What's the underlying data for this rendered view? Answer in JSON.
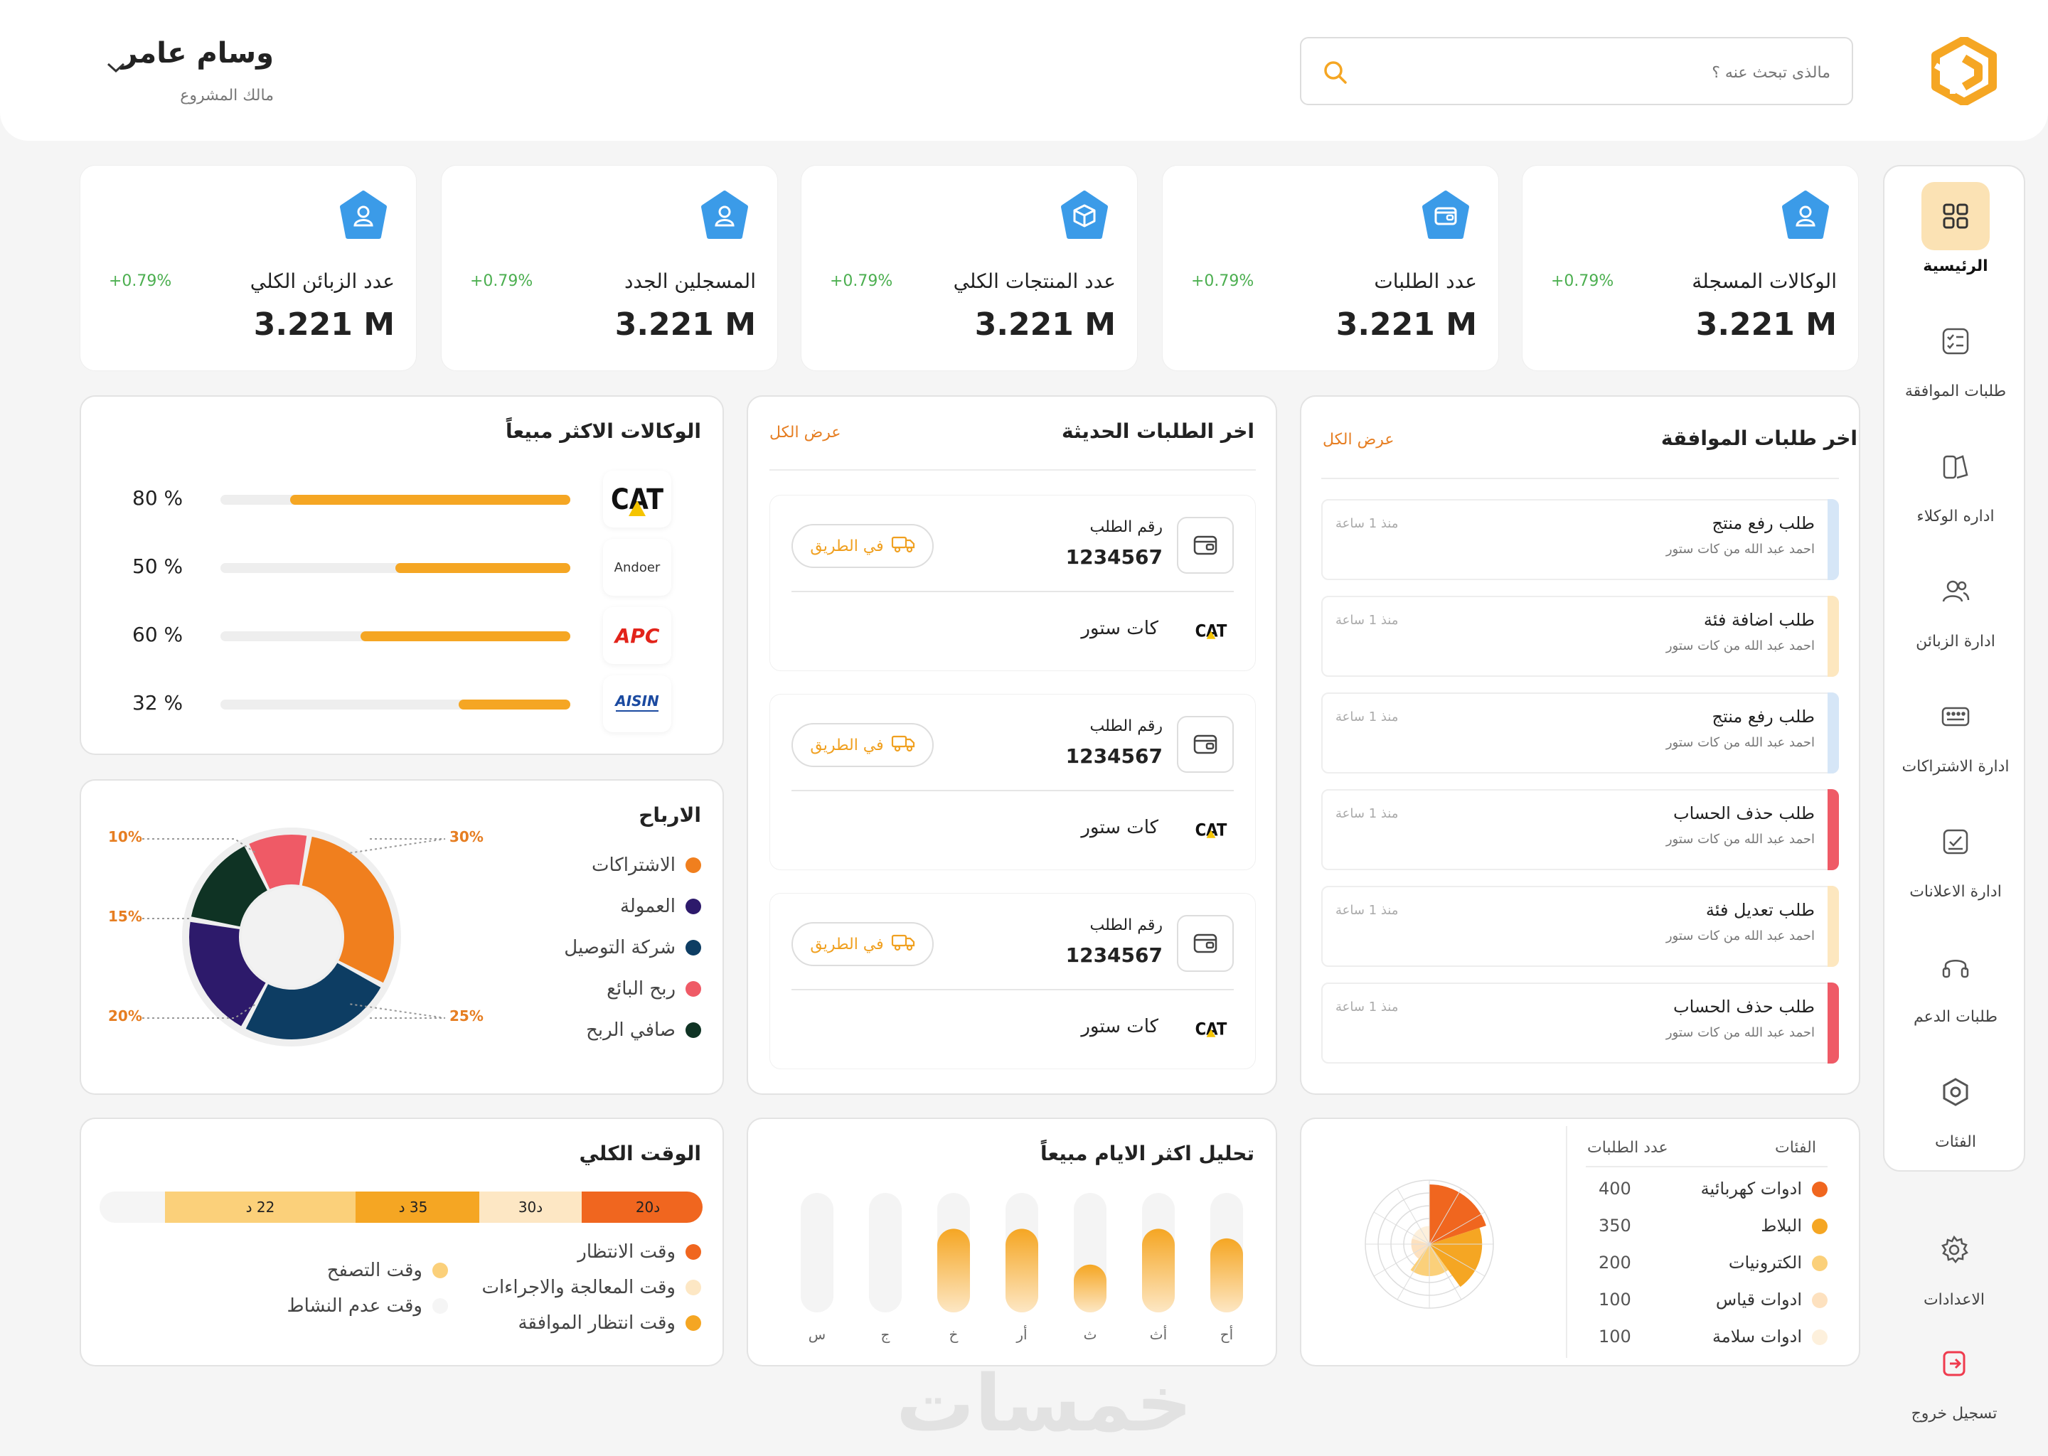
{
  "header": {
    "search_placeholder": "مالذى تبحث عنه ؟",
    "user_name": "وسام عامر",
    "user_role": "مالك المشروع"
  },
  "sidebar": {
    "items": [
      {
        "label": "الرئيسية",
        "icon": "grid-icon"
      },
      {
        "label": "طلبات الموافقة",
        "icon": "checklist-icon"
      },
      {
        "label": "اداره الوكلاء",
        "icon": "agents-icon"
      },
      {
        "label": "ادارة الزبائن",
        "icon": "users-icon"
      },
      {
        "label": "ادارة الاشتراكات",
        "icon": "subscription-icon"
      },
      {
        "label": "ادارة الاعلانات",
        "icon": "ads-icon"
      },
      {
        "label": "طلبات الدعم",
        "icon": "headset-icon"
      },
      {
        "label": "الفئات",
        "icon": "categories-icon"
      }
    ],
    "settings_label": "الاعدادات",
    "logout_label": "تسجيل خروج"
  },
  "stats": [
    {
      "title": "الوكالات المسجلة",
      "value": "3.221 M",
      "change": "+0.79%",
      "icon": "user-icon"
    },
    {
      "title": "عدد الطلبات",
      "value": "3.221 M",
      "change": "+0.79%",
      "icon": "wallet-icon"
    },
    {
      "title": "عدد المنتجات الكلي",
      "value": "3.221 M",
      "change": "+0.79%",
      "icon": "box-icon"
    },
    {
      "title": "المسجلين الجدد",
      "value": "3.221 M",
      "change": "+0.79%",
      "icon": "user-icon"
    },
    {
      "title": "عدد الزبائن الكلي",
      "value": "3.221 M",
      "change": "+0.79%",
      "icon": "user-icon"
    }
  ],
  "approvals": {
    "title": "اخر طلبات الموافقة",
    "view_all": "عرض الكل",
    "items": [
      {
        "title": "طلب رفع منتج",
        "sub": "احمد عبد الله من كات ستور",
        "time": "منذ 1 ساعة",
        "color": "#d6e6f7"
      },
      {
        "title": "طلب اضافة فئة",
        "sub": "احمد عبد الله من كات ستور",
        "time": "منذ 1 ساعة",
        "color": "#fde7bf"
      },
      {
        "title": "طلب رفع منتج",
        "sub": "احمد عبد الله من كات ستور",
        "time": "منذ 1 ساعة",
        "color": "#d6e6f7"
      },
      {
        "title": "طلب حذف الحساب",
        "sub": "احمد عبد الله من كات ستور",
        "time": "منذ 1 ساعة",
        "color": "#ef5a66"
      },
      {
        "title": "طلب تعديل فئة",
        "sub": "احمد عبد الله من كات ستور",
        "time": "منذ 1 ساعة",
        "color": "#fde7bf"
      },
      {
        "title": "طلب حذف الحساب",
        "sub": "احمد عبد الله من كات ستور",
        "time": "منذ 1 ساعة",
        "color": "#ef5a66"
      }
    ]
  },
  "orders": {
    "title": "اخر الطلبات الحديثة",
    "view_all": "عرض الكل",
    "items": [
      {
        "number_label": "رقم الطلب",
        "number": "1234567",
        "status": "في الطريق",
        "store": "كات ستور",
        "store_logo": "CAT"
      },
      {
        "number_label": "رقم الطلب",
        "number": "1234567",
        "status": "في الطريق",
        "store": "كات ستور",
        "store_logo": "CAT"
      },
      {
        "number_label": "رقم الطلب",
        "number": "1234567",
        "status": "في الطريق",
        "store": "كات ستور",
        "store_logo": "CAT"
      }
    ]
  },
  "agencies": {
    "title": "الوكالات الاكثر مبيعاً",
    "items": [
      {
        "logo": "CAT",
        "percent_label": "% 80",
        "percent": 80,
        "color": "#111111"
      },
      {
        "logo": "Andoer",
        "percent_label": "% 50",
        "percent": 50,
        "color": "#333333"
      },
      {
        "logo": "APC",
        "percent_label": "% 60",
        "percent": 60,
        "color": "#e2231a"
      },
      {
        "logo": "AISIN",
        "percent_label": "% 32",
        "percent": 32,
        "color": "#1b4aa0"
      }
    ]
  },
  "profits": {
    "title": "الارباح",
    "legend": [
      {
        "label": "الاشتراكات",
        "color": "#f07f1e"
      },
      {
        "label": "العمولة",
        "color": "#2d1a6b"
      },
      {
        "label": "شركة التوصيل",
        "color": "#0d3d63"
      },
      {
        "label": "ربح البائع",
        "color": "#ef5a66"
      },
      {
        "label": "صافي الربح",
        "color": "#0f3324"
      }
    ],
    "callouts": [
      "10%",
      "30%",
      "15%",
      "20%",
      "25%"
    ]
  },
  "total_time": {
    "title": "الوقت الكلي",
    "segments": [
      {
        "label": "د20",
        "value": 20,
        "color": "#f0661f"
      },
      {
        "label": "د30",
        "value": 30,
        "color": "#fde7c4"
      },
      {
        "label": "35 د",
        "value": 35,
        "color": "#f5a623"
      },
      {
        "label": "22 د",
        "value": 22,
        "color": "#fbd07a"
      }
    ],
    "legend": [
      {
        "label": "وقت الانتظار",
        "color": "#f0661f"
      },
      {
        "label": "وقت المعالجة والاجراءات",
        "color": "#fde7c4"
      },
      {
        "label": "وقت انتظار الموافقة",
        "color": "#f5a623"
      },
      {
        "label": "وقت التصفح",
        "color": "#fbd07a"
      },
      {
        "label": "وقت عدم النشاط",
        "color": "#f5f5f5"
      }
    ]
  },
  "days_chart": {
    "title": "تحليل اكثر الايام مبيعاً",
    "days": [
      {
        "label": "أح",
        "value": 0.62
      },
      {
        "label": "أث",
        "value": 0.7
      },
      {
        "label": "ث",
        "value": 0.4
      },
      {
        "label": "أر",
        "value": 0.7
      },
      {
        "label": "خ",
        "value": 0.7
      },
      {
        "label": "ج",
        "value": 0
      },
      {
        "label": "س",
        "value": 0
      }
    ]
  },
  "categories": {
    "header_category": "الفئات",
    "header_count": "عدد الطلبات",
    "rows": [
      {
        "name": "ادوات كهربائية",
        "count": "400",
        "color": "#f0661f"
      },
      {
        "name": "البلاط",
        "count": "350",
        "color": "#f5a623"
      },
      {
        "name": "الكترونيات",
        "count": "200",
        "color": "#fbd07a"
      },
      {
        "name": "ادوات قياس",
        "count": "100",
        "color": "#fde1bf"
      },
      {
        "name": "ادوات سلامة",
        "count": "100",
        "color": "#fdf0dc"
      }
    ]
  },
  "chart_data": [
    {
      "type": "bar",
      "title": "تحليل اكثر الايام مبيعاً",
      "categories": [
        "أح",
        "أث",
        "ث",
        "أر",
        "خ",
        "ج",
        "س"
      ],
      "values": [
        0.62,
        0.7,
        0.4,
        0.7,
        0.7,
        0,
        0
      ],
      "ylim": [
        0,
        1
      ]
    },
    {
      "type": "pie",
      "title": "الارباح",
      "labels": [
        "الاشتراكات",
        "شركة التوصيل",
        "العمولة",
        "صافي الربح",
        "ربح البائع"
      ],
      "values": [
        30,
        25,
        20,
        15,
        10
      ]
    },
    {
      "type": "bar",
      "title": "الوقت الكلي",
      "categories": [
        "وقت الانتظار",
        "وقت المعالجة والاجراءات",
        "وقت انتظار الموافقة",
        "وقت التصفح"
      ],
      "values": [
        20,
        30,
        35,
        22
      ]
    },
    {
      "type": "pie",
      "title": "الفئات",
      "labels": [
        "ادوات كهربائية",
        "البلاط",
        "الكترونيات",
        "ادوات قياس",
        "ادوات سلامة"
      ],
      "values": [
        400,
        350,
        200,
        100,
        100
      ]
    }
  ],
  "watermark": "خمسات"
}
